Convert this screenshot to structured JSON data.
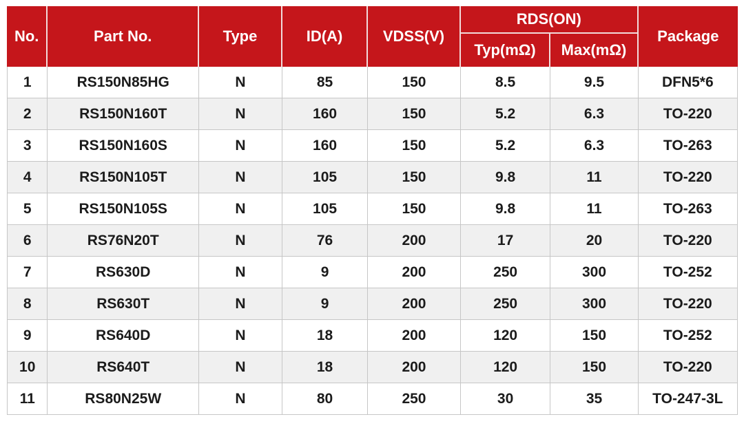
{
  "colors": {
    "page_bg": "#FFFFFF",
    "header_bg": "#C5161B",
    "header_text": "#FFFFFF",
    "header_divider": "#F2DCDC",
    "row_odd_bg": "#FFFFFF",
    "row_even_bg": "#F0F0F0",
    "border": "#C6C6C6",
    "text": "#1B1B1B"
  },
  "table": {
    "header": {
      "no": "No.",
      "part_no": "Part No.",
      "type": "Type",
      "id_a": "ID(A)",
      "vdss_v": "VDSS(V)",
      "rds_on": "RDS(ON)",
      "rds_typ": "Typ(mΩ)",
      "rds_max": "Max(mΩ)",
      "package": "Package"
    },
    "rows": [
      {
        "no": "1",
        "part_no": "RS150N85HG",
        "type": "N",
        "id_a": "85",
        "vdss_v": "150",
        "rds_typ": "8.5",
        "rds_max": "9.5",
        "package": "DFN5*6"
      },
      {
        "no": "2",
        "part_no": "RS150N160T",
        "type": "N",
        "id_a": "160",
        "vdss_v": "150",
        "rds_typ": "5.2",
        "rds_max": "6.3",
        "package": "TO-220"
      },
      {
        "no": "3",
        "part_no": "RS150N160S",
        "type": "N",
        "id_a": "160",
        "vdss_v": "150",
        "rds_typ": "5.2",
        "rds_max": "6.3",
        "package": "TO-263"
      },
      {
        "no": "4",
        "part_no": "RS150N105T",
        "type": "N",
        "id_a": "105",
        "vdss_v": "150",
        "rds_typ": "9.8",
        "rds_max": "11",
        "package": "TO-220"
      },
      {
        "no": "5",
        "part_no": "RS150N105S",
        "type": "N",
        "id_a": "105",
        "vdss_v": "150",
        "rds_typ": "9.8",
        "rds_max": "11",
        "package": "TO-263"
      },
      {
        "no": "6",
        "part_no": "RS76N20T",
        "type": "N",
        "id_a": "76",
        "vdss_v": "200",
        "rds_typ": "17",
        "rds_max": "20",
        "package": "TO-220"
      },
      {
        "no": "7",
        "part_no": "RS630D",
        "type": "N",
        "id_a": "9",
        "vdss_v": "200",
        "rds_typ": "250",
        "rds_max": "300",
        "package": "TO-252"
      },
      {
        "no": "8",
        "part_no": "RS630T",
        "type": "N",
        "id_a": "9",
        "vdss_v": "200",
        "rds_typ": "250",
        "rds_max": "300",
        "package": "TO-220"
      },
      {
        "no": "9",
        "part_no": "RS640D",
        "type": "N",
        "id_a": "18",
        "vdss_v": "200",
        "rds_typ": "120",
        "rds_max": "150",
        "package": "TO-252"
      },
      {
        "no": "10",
        "part_no": "RS640T",
        "type": "N",
        "id_a": "18",
        "vdss_v": "200",
        "rds_typ": "120",
        "rds_max": "150",
        "package": "TO-220"
      },
      {
        "no": "11",
        "part_no": "RS80N25W",
        "type": "N",
        "id_a": "80",
        "vdss_v": "250",
        "rds_typ": "30",
        "rds_max": "35",
        "package": "TO-247-3L"
      }
    ]
  }
}
